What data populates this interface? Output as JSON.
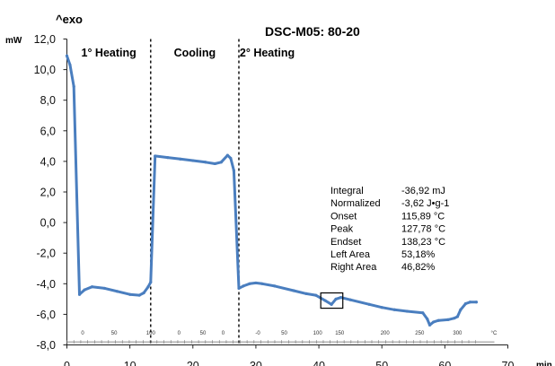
{
  "chart_data": {
    "type": "line",
    "title": "DSC-M05: 80-20",
    "ylabel_top": "^exo",
    "ylabel": "mW",
    "xlabel": "min",
    "xlim": [
      0,
      70
    ],
    "ylim": [
      -8,
      12
    ],
    "x_ticks": [
      0,
      10,
      20,
      30,
      40,
      50,
      60,
      70
    ],
    "y_ticks": [
      "12,0",
      "10,0",
      "8,0",
      "6,0",
      "4,0",
      "2,0",
      "0,0",
      "-2,0",
      "-4,0",
      "-6,0",
      "-8,0"
    ],
    "segments": [
      "1° Heating",
      "Cooling",
      "2° Heating"
    ],
    "segment_boundaries": [
      13.3,
      27.3
    ],
    "color": "#4a7ebf",
    "grid": false,
    "series": [
      {
        "values": [
          [
            0,
            10.9
          ],
          [
            0.5,
            10.3
          ],
          [
            1.1,
            8.9
          ],
          [
            2.0,
            -4.7
          ],
          [
            2.8,
            -4.4
          ],
          [
            4.0,
            -4.2
          ],
          [
            6.0,
            -4.3
          ],
          [
            8.0,
            -4.5
          ],
          [
            10.0,
            -4.7
          ],
          [
            11.5,
            -4.75
          ],
          [
            12.2,
            -4.6
          ],
          [
            12.9,
            -4.2
          ],
          [
            13.3,
            -3.9
          ],
          [
            14.0,
            4.35
          ],
          [
            16.0,
            4.25
          ],
          [
            18.0,
            4.15
          ],
          [
            20.0,
            4.05
          ],
          [
            22.0,
            3.95
          ],
          [
            23.5,
            3.85
          ],
          [
            24.5,
            3.95
          ],
          [
            25.5,
            4.4
          ],
          [
            26.0,
            4.2
          ],
          [
            26.5,
            3.4
          ],
          [
            27.3,
            -4.3
          ],
          [
            28.0,
            -4.15
          ],
          [
            29.0,
            -4.0
          ],
          [
            30.0,
            -3.95
          ],
          [
            31.0,
            -4.0
          ],
          [
            33.0,
            -4.15
          ],
          [
            36.0,
            -4.45
          ],
          [
            38.0,
            -4.65
          ],
          [
            39.5,
            -4.75
          ],
          [
            41.0,
            -5.1
          ],
          [
            42.0,
            -5.35
          ],
          [
            42.7,
            -5.0
          ],
          [
            43.5,
            -4.9
          ],
          [
            45.0,
            -5.05
          ],
          [
            48.0,
            -5.35
          ],
          [
            50.0,
            -5.55
          ],
          [
            52.0,
            -5.7
          ],
          [
            54.0,
            -5.8
          ],
          [
            56.5,
            -5.9
          ],
          [
            57.2,
            -6.3
          ],
          [
            57.6,
            -6.7
          ],
          [
            58.2,
            -6.5
          ],
          [
            59.0,
            -6.4
          ],
          [
            60.5,
            -6.35
          ],
          [
            61.5,
            -6.25
          ],
          [
            62.0,
            -6.15
          ],
          [
            62.5,
            -5.7
          ],
          [
            63.3,
            -5.3
          ],
          [
            64.0,
            -5.2
          ],
          [
            65.0,
            -5.2
          ]
        ]
      }
    ],
    "selection_box": [
      40.3,
      43.8,
      -4.6,
      -5.6
    ],
    "temperature_axis": {
      "unit": "°C",
      "label_y": -7.2,
      "scales": [
        {
          "ticks": [
            [
              "0",
              2.5
            ],
            [
              "50",
              7.5
            ],
            [
              "100",
              13.3
            ]
          ]
        },
        {
          "ticks": [
            [
              "0",
              17.8
            ],
            [
              "50",
              21.6
            ],
            [
              "0",
              24.8
            ]
          ]
        },
        {
          "ticks": [
            [
              "-0",
              30.3
            ],
            [
              "50",
              34.5
            ],
            [
              "100",
              39.8
            ],
            [
              "150",
              43.3
            ],
            [
              "200",
              50.5
            ],
            [
              "250",
              56.0
            ],
            [
              "300",
              62.0
            ]
          ]
        }
      ],
      "unit_x": 67.3
    },
    "results": [
      {
        "label": "Integral",
        "value": "-36,92 mJ"
      },
      {
        "label": "Normalized",
        "value": "-3,62 J•g-1"
      },
      {
        "label": "Onset",
        "value": "115,89 °C"
      },
      {
        "label": "Peak",
        "value": "127,78 °C"
      },
      {
        "label": "Endset",
        "value": "138,23 °C"
      },
      {
        "label": "Left Area",
        "value": "53,18%"
      },
      {
        "label": "Right Area",
        "value": "46,82%"
      }
    ]
  }
}
